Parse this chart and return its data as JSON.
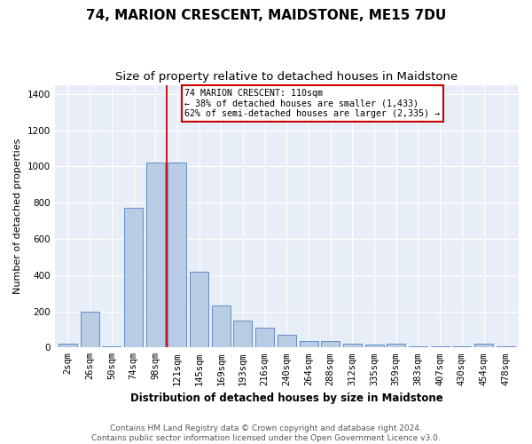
{
  "title": "74, MARION CRESCENT, MAIDSTONE, ME15 7DU",
  "subtitle": "Size of property relative to detached houses in Maidstone",
  "xlabel": "Distribution of detached houses by size in Maidstone",
  "ylabel": "Number of detached properties",
  "footer_line1": "Contains HM Land Registry data © Crown copyright and database right 2024.",
  "footer_line2": "Contains public sector information licensed under the Open Government Licence v3.0.",
  "bar_labels": [
    "2sqm",
    "26sqm",
    "50sqm",
    "74sqm",
    "98sqm",
    "121sqm",
    "145sqm",
    "169sqm",
    "193sqm",
    "216sqm",
    "240sqm",
    "264sqm",
    "288sqm",
    "312sqm",
    "335sqm",
    "359sqm",
    "383sqm",
    "407sqm",
    "430sqm",
    "454sqm",
    "478sqm"
  ],
  "bar_values": [
    20,
    200,
    5,
    770,
    1020,
    1020,
    420,
    230,
    150,
    110,
    70,
    35,
    35,
    20,
    15,
    20,
    5,
    5,
    5,
    20,
    5
  ],
  "bar_color": "#b8cce4",
  "bar_edge_color": "#5080c0",
  "background_color": "#e8eef8",
  "grid_color": "#ffffff",
  "annotation_box_text": "74 MARION CRESCENT: 110sqm\n← 38% of detached houses are smaller (1,433)\n62% of semi-detached houses are larger (2,335) →",
  "annotation_box_color": "#cc0000",
  "annotation_box_bg": "#ffffff",
  "ylim": [
    0,
    1450
  ],
  "yticks": [
    0,
    200,
    400,
    600,
    800,
    1000,
    1200,
    1400
  ],
  "title_fontsize": 11,
  "subtitle_fontsize": 9.5,
  "ylabel_fontsize": 8,
  "xlabel_fontsize": 8.5,
  "tick_fontsize": 7.5,
  "footer_fontsize": 6.5,
  "fig_width": 6.0,
  "fig_height": 5.0,
  "dpi": 100
}
